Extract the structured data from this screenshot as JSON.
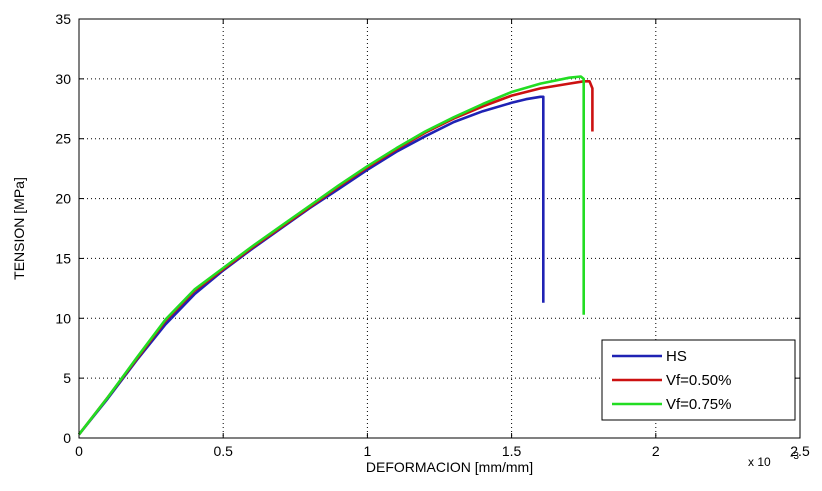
{
  "chart_data": {
    "type": "line",
    "xlabel": "DEFORMACION [mm/mm]",
    "ylabel": "TENSION [MPa]",
    "x_multiplier_label": "x 10",
    "x_multiplier_exponent": "-3",
    "xlim": [
      0,
      2.5
    ],
    "ylim": [
      0,
      35
    ],
    "x_ticks": [
      0,
      0.5,
      1,
      1.5,
      2,
      2.5
    ],
    "x_tick_labels": [
      "0",
      "0.5",
      "1",
      "1.5",
      "2",
      "2.5"
    ],
    "y_ticks": [
      0,
      5,
      10,
      15,
      20,
      25,
      30,
      35
    ],
    "y_tick_labels": [
      "0",
      "5",
      "10",
      "15",
      "20",
      "25",
      "30",
      "35"
    ],
    "grid": true,
    "legend_position": "bottom-right",
    "series": [
      {
        "name": "HS",
        "color": "#1f22b4",
        "x": [
          0,
          0.1,
          0.2,
          0.3,
          0.4,
          0.5,
          0.6,
          0.7,
          0.8,
          0.9,
          1.0,
          1.1,
          1.2,
          1.3,
          1.4,
          1.5,
          1.55,
          1.6,
          1.61,
          1.61,
          1.61
        ],
        "y": [
          0.3,
          3.3,
          6.5,
          9.5,
          12.0,
          14.0,
          15.8,
          17.5,
          19.2,
          20.8,
          22.4,
          23.9,
          25.2,
          26.4,
          27.3,
          28.0,
          28.3,
          28.5,
          28.5,
          20.0,
          11.3
        ]
      },
      {
        "name": "Vf=0.50%",
        "color": "#cc1111",
        "x": [
          0,
          0.1,
          0.2,
          0.3,
          0.4,
          0.5,
          0.6,
          0.7,
          0.8,
          0.9,
          1.0,
          1.1,
          1.2,
          1.3,
          1.4,
          1.5,
          1.6,
          1.7,
          1.75,
          1.77,
          1.78,
          1.78
        ],
        "y": [
          0.3,
          3.4,
          6.6,
          9.8,
          12.3,
          14.1,
          15.9,
          17.6,
          19.3,
          21.0,
          22.6,
          24.1,
          25.5,
          26.7,
          27.7,
          28.6,
          29.2,
          29.6,
          29.8,
          29.8,
          29.2,
          25.6
        ]
      },
      {
        "name": "Vf=0.75%",
        "color": "#22dd22",
        "x": [
          0,
          0.1,
          0.2,
          0.3,
          0.4,
          0.5,
          0.6,
          0.7,
          0.8,
          0.9,
          1.0,
          1.1,
          1.2,
          1.3,
          1.4,
          1.5,
          1.6,
          1.7,
          1.74,
          1.75,
          1.75,
          1.75
        ],
        "y": [
          0.3,
          3.4,
          6.7,
          9.9,
          12.4,
          14.2,
          16.0,
          17.7,
          19.4,
          21.1,
          22.7,
          24.2,
          25.6,
          26.8,
          27.9,
          28.9,
          29.6,
          30.1,
          30.2,
          30.0,
          20.0,
          10.3
        ]
      }
    ]
  }
}
